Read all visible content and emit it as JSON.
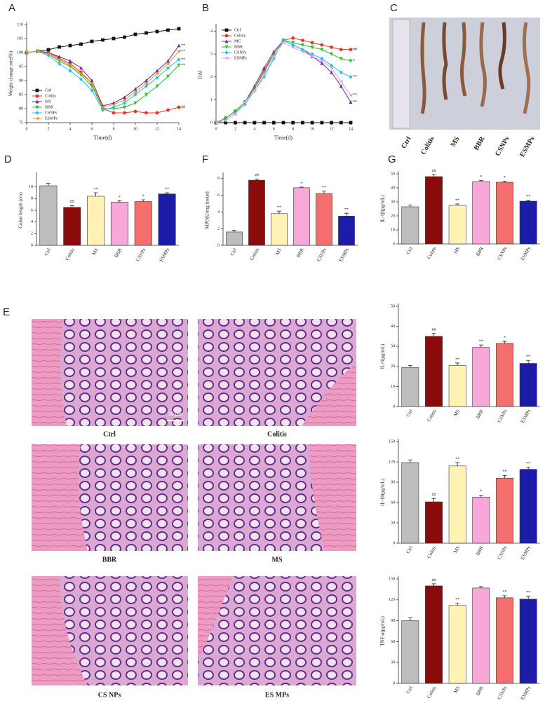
{
  "chart_data": [
    {
      "type": "line",
      "panel": "A",
      "ylabel": "Weight change rate(%)",
      "xlabel": "Time(d)",
      "x": [
        0,
        1,
        2,
        3,
        4,
        5,
        6,
        7,
        8,
        9,
        10,
        11,
        12,
        13,
        14
      ],
      "xlim": [
        0,
        14
      ],
      "xticks": [
        0,
        2,
        4,
        6,
        8,
        10,
        12,
        14
      ],
      "ylim": [
        75,
        110
      ],
      "yticks": [
        75,
        80,
        85,
        90,
        95,
        100,
        105,
        110
      ],
      "legend": "lower left",
      "series": [
        {
          "name": "Ctrl",
          "color": "#111111",
          "marker": "square",
          "values": [
            100,
            100.5,
            101,
            102,
            102.5,
            103,
            104,
            104.5,
            105,
            105.5,
            106.5,
            107,
            107.5,
            108,
            108.5
          ]
        },
        {
          "name": "Colitis",
          "color": "#e8322b",
          "marker": "circle",
          "annotation": "##",
          "values": [
            100,
            100.5,
            100,
            98,
            96,
            93,
            89,
            80,
            78.5,
            78.5,
            79,
            78.5,
            78.5,
            79.5,
            80.5
          ]
        },
        {
          "name": "MS",
          "color": "#6a2a8c",
          "marker": "triangle",
          "annotation": "**",
          "values": [
            100,
            100.5,
            100,
            98.5,
            97,
            94.5,
            90,
            81,
            82,
            84,
            87,
            90,
            93.5,
            97,
            102.5
          ]
        },
        {
          "name": "BBR",
          "color": "#22c322",
          "marker": "triangle-down",
          "annotation": "**",
          "values": [
            100,
            100.5,
            99.5,
            97,
            95,
            92,
            88,
            80,
            80,
            80.5,
            82,
            85,
            88,
            91.5,
            95.5
          ]
        },
        {
          "name": "CSNPs",
          "color": "#19c3e6",
          "marker": "diamond",
          "annotation": "**",
          "values": [
            100,
            100.5,
            99,
            96,
            93.5,
            90.5,
            86.5,
            79.5,
            80.5,
            82,
            85,
            88,
            91,
            94.5,
            97.5
          ]
        },
        {
          "name": "ESMPs",
          "color": "#f0952b",
          "marker": "triangle-left",
          "annotation": "**",
          "values": [
            100,
            100.5,
            99.5,
            97.5,
            95.5,
            92.5,
            89,
            80.5,
            81.5,
            83,
            86,
            89,
            92.5,
            96,
            100.5
          ]
        }
      ]
    },
    {
      "type": "line",
      "panel": "B",
      "ylabel": "DAI",
      "xlabel": "Time(d)",
      "x": [
        0,
        1,
        2,
        3,
        4,
        5,
        6,
        7,
        8,
        9,
        10,
        11,
        12,
        13,
        14
      ],
      "xlim": [
        0,
        14
      ],
      "xticks": [
        0,
        2,
        4,
        6,
        8,
        10,
        12,
        14
      ],
      "ylim": [
        0,
        4.2
      ],
      "yticks": [
        0,
        1,
        2,
        3,
        4
      ],
      "legend": "upper left",
      "series": [
        {
          "name": "Ctrl",
          "color": "#111111",
          "marker": "square",
          "values": [
            0,
            0,
            0,
            0,
            0,
            0,
            0,
            0,
            0,
            0,
            0,
            0,
            0,
            0,
            0
          ]
        },
        {
          "name": "Colitis",
          "color": "#e8322b",
          "marker": "circle",
          "annotation": "##",
          "values": [
            0,
            0.2,
            0.5,
            0.9,
            1.5,
            2.3,
            3.0,
            3.6,
            3.7,
            3.6,
            3.5,
            3.4,
            3.3,
            3.2,
            3.2
          ]
        },
        {
          "name": "MC",
          "color": "#7a2a9c",
          "marker": "triangle",
          "annotation": "**",
          "values": [
            0,
            0.2,
            0.5,
            0.9,
            1.6,
            2.4,
            3.1,
            3.6,
            3.4,
            3.2,
            2.9,
            2.6,
            2.2,
            1.6,
            0.9
          ]
        },
        {
          "name": "BBR",
          "color": "#22c322",
          "marker": "triangle-down",
          "annotation": "*",
          "values": [
            0,
            0.2,
            0.5,
            0.9,
            1.5,
            2.2,
            3.0,
            3.6,
            3.5,
            3.4,
            3.3,
            3.2,
            3.0,
            2.8,
            2.7
          ]
        },
        {
          "name": "CSNPs",
          "color": "#19c3e6",
          "marker": "diamond",
          "annotation": "**",
          "values": [
            0,
            0.1,
            0.4,
            0.8,
            1.4,
            2.0,
            2.8,
            3.6,
            3.4,
            3.2,
            3.0,
            2.8,
            2.5,
            2.2,
            2.0
          ]
        },
        {
          "name": "ESMPs",
          "color": "#e6a2f0",
          "marker": "triangle-left",
          "annotation": "**",
          "values": [
            0,
            0.1,
            0.4,
            0.9,
            1.4,
            2.1,
            2.9,
            3.5,
            3.3,
            3.1,
            2.9,
            2.7,
            2.4,
            1.8,
            1.2
          ]
        }
      ]
    },
    {
      "type": "bar",
      "panel": "D",
      "ylabel": "Colon length (cm)",
      "categories": [
        "Ctrl",
        "Colitis",
        "MS",
        "BBR",
        "CSNPs",
        "ESMPs"
      ],
      "colors": [
        "#bdbdbd",
        "#8b0a0a",
        "#fff2b3",
        "#f7a8d8",
        "#f46e6e",
        "#1c1ca8"
      ],
      "values": [
        10.2,
        6.5,
        8.4,
        7.4,
        7.5,
        8.8
      ],
      "errors": [
        0.4,
        0.3,
        0.6,
        0.2,
        0.3,
        0.2
      ],
      "annotations": [
        null,
        "##",
        "**",
        "*",
        "*",
        "**"
      ],
      "ylim": [
        0,
        12
      ],
      "yticks": [
        0,
        2,
        4,
        6,
        8,
        10
      ]
    },
    {
      "type": "bar",
      "panel": "F",
      "ylabel": "MPO(U/mg tissue)",
      "categories": [
        "Ctrl",
        "Colitis",
        "MS",
        "BBR",
        "CSNPs",
        "ESMPs"
      ],
      "colors": [
        "#bdbdbd",
        "#8b0a0a",
        "#fff2b3",
        "#f7a8d8",
        "#f46e6e",
        "#1c1ca8"
      ],
      "values": [
        1.6,
        7.8,
        3.8,
        6.9,
        6.2,
        3.5
      ],
      "errors": [
        0.2,
        0.15,
        0.3,
        0.08,
        0.3,
        0.35
      ],
      "annotations": [
        null,
        "##",
        "**",
        "*",
        "**",
        "**"
      ],
      "ylim": [
        0,
        8.4
      ],
      "yticks": [
        0,
        2,
        4,
        6,
        8
      ]
    },
    {
      "type": "bar",
      "panel": "G",
      "ylabel": "IL-1β(pg/mL)",
      "categories": [
        "Ctrl",
        "Colitis",
        "MS",
        "BBR",
        "CSNPs",
        "ESMPs"
      ],
      "colors": [
        "#bdbdbd",
        "#8b0a0a",
        "#fff2b3",
        "#f7a8d8",
        "#f46e6e",
        "#1c1ca8"
      ],
      "values": [
        26.5,
        48,
        27.5,
        44.5,
        44,
        30.5
      ],
      "errors": [
        1.2,
        1.5,
        1,
        0.8,
        0.8,
        0.6
      ],
      "annotations": [
        null,
        "##",
        "**",
        "*",
        "*",
        "**"
      ],
      "ylim": [
        0,
        50
      ],
      "yticks": [
        0,
        10,
        20,
        30,
        40,
        50
      ]
    },
    {
      "type": "bar",
      "ylabel": "IL-6(pg/mL)",
      "categories": [
        "Ctrl",
        "Colitis",
        "MS",
        "BBR",
        "CSNPs",
        "ESMPs"
      ],
      "colors": [
        "#bdbdbd",
        "#8b0a0a",
        "#fff2b3",
        "#f7a8d8",
        "#f46e6e",
        "#1c1ca8"
      ],
      "values": [
        19.5,
        35,
        20.5,
        29.5,
        31.5,
        21.5
      ],
      "errors": [
        1,
        1.5,
        1.2,
        1.2,
        1,
        1.5
      ],
      "annotations": [
        null,
        "##",
        "**",
        "**",
        "*",
        "**"
      ],
      "ylim": [
        0,
        50
      ],
      "yticks": [
        0,
        10,
        20,
        30,
        40,
        50
      ]
    },
    {
      "type": "bar",
      "ylabel": "IL-10(pg/mL)",
      "categories": [
        "Ctrl",
        "Colitis",
        "MS",
        "BBR",
        "CSNPs",
        "ESMPs"
      ],
      "colors": [
        "#bdbdbd",
        "#8b0a0a",
        "#fff2b3",
        "#f7a8d8",
        "#f46e6e",
        "#1c1ca8"
      ],
      "values": [
        119,
        61,
        114,
        68,
        96,
        109
      ],
      "errors": [
        4,
        5,
        5,
        3,
        4,
        3
      ],
      "annotations": [
        null,
        "##",
        "**",
        "*",
        "**",
        "**"
      ],
      "ylim": [
        0,
        150
      ],
      "yticks": [
        0,
        30,
        60,
        90,
        120,
        150
      ]
    },
    {
      "type": "bar",
      "ylabel": "TNF-α(pg/mL)",
      "categories": [
        "Ctrl",
        "Colitis",
        "MS",
        "BBR",
        "CSNPs",
        "ESMPs"
      ],
      "colors": [
        "#bdbdbd",
        "#8b0a0a",
        "#fff2b3",
        "#f7a8d8",
        "#f46e6e",
        "#1c1ca8"
      ],
      "values": [
        90,
        140,
        112,
        137,
        123,
        121
      ],
      "errors": [
        4,
        3,
        3,
        2,
        3,
        4
      ],
      "annotations": [
        null,
        "##",
        "**",
        null,
        "**",
        "**"
      ],
      "ylim": [
        0,
        150
      ],
      "yticks": [
        0,
        30,
        60,
        90,
        120,
        150
      ]
    }
  ],
  "photos": [
    {
      "panel": "C",
      "labels": [
        "Ctrl",
        "Colitis",
        "MS",
        "BBR",
        "CSNPs",
        "ESMPs"
      ]
    },
    {
      "panel": "E",
      "labels": [
        "Ctrl",
        "Colitis",
        "BBR",
        "MS",
        "CS NPs",
        "ES MPs"
      ],
      "scale_bar": "50 μm"
    }
  ]
}
